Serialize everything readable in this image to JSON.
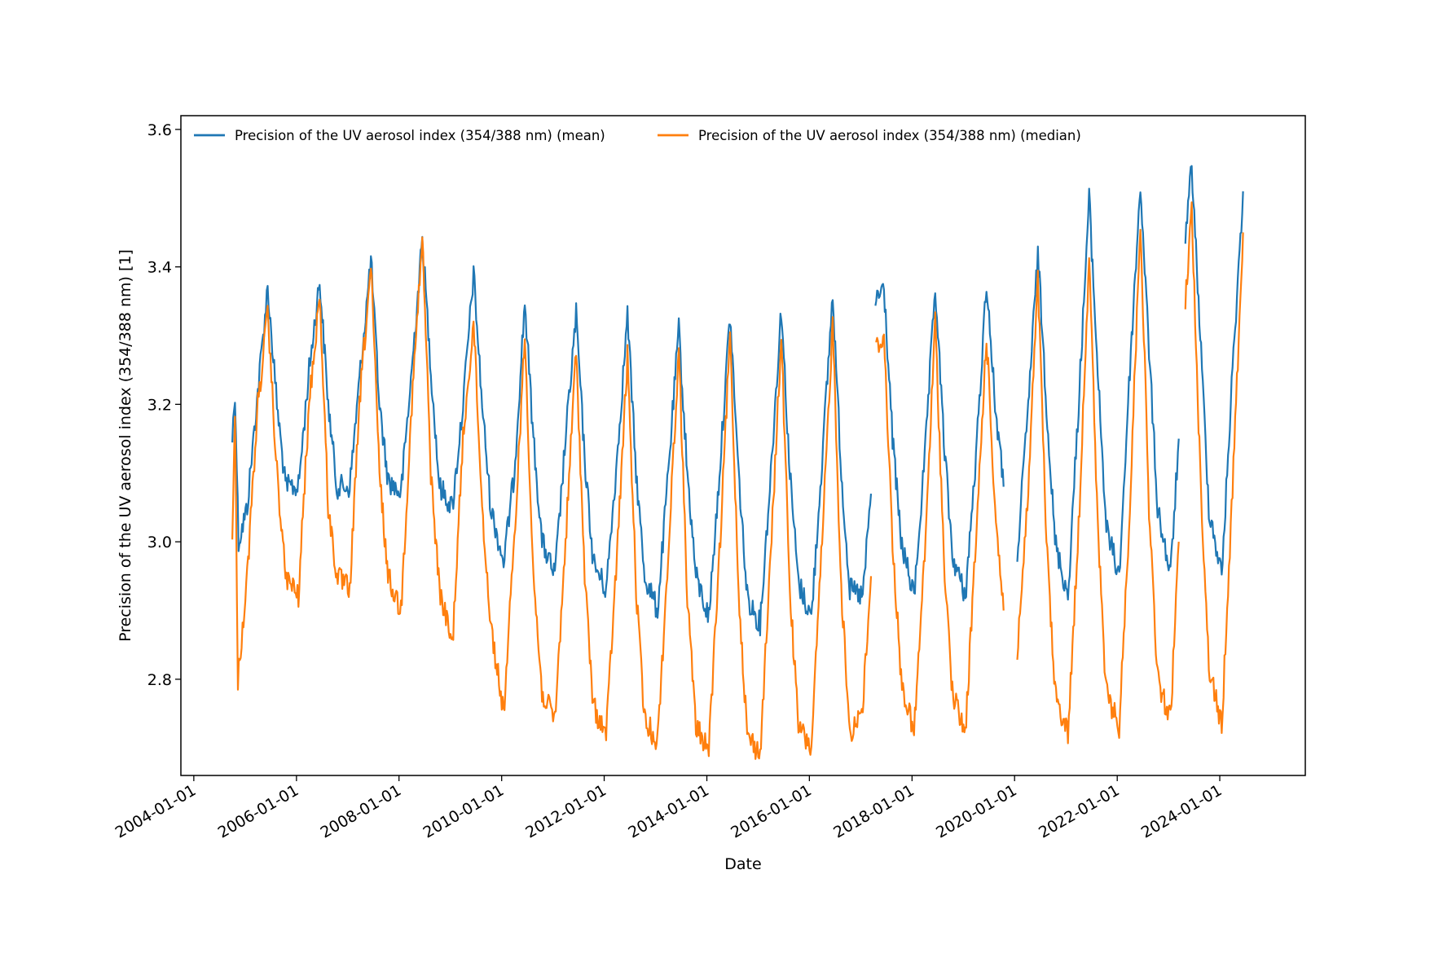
{
  "chart_data": {
    "type": "line",
    "xlabel": "Date",
    "ylabel": "Precision of the UV aerosol index (354/388 nm) [1]",
    "xlim": [
      "2003-10-01",
      "2025-09-01"
    ],
    "ylim": [
      2.66,
      3.62
    ],
    "x_ticks": [
      "2004-01-01",
      "2006-01-01",
      "2008-01-01",
      "2010-01-01",
      "2012-01-01",
      "2014-01-01",
      "2016-01-01",
      "2018-01-01",
      "2020-01-01",
      "2022-01-01",
      "2024-01-01"
    ],
    "y_ticks": [
      "2.8",
      "3.0",
      "3.2",
      "3.4",
      "3.6"
    ],
    "legend_position": "top-left",
    "grid": false,
    "series": [
      {
        "name": "Precision of the UV aerosol index (354/388 nm) (mean)",
        "color": "#1f77b4",
        "x": [
          "2004-10-01",
          "2004-10-20",
          "2004-11-15",
          "2005-01-15",
          "2005-04-01",
          "2005-06-10",
          "2005-08-15",
          "2005-10-15",
          "2006-01-15",
          "2006-04-01",
          "2006-06-15",
          "2006-08-15",
          "2006-10-15",
          "2007-01-15",
          "2007-04-01",
          "2007-06-15",
          "2007-08-15",
          "2007-10-15",
          "2008-01-15",
          "2008-04-01",
          "2008-06-15",
          "2008-08-15",
          "2008-10-15",
          "2009-01-15",
          "2009-04-01",
          "2009-06-15",
          "2009-08-15",
          "2009-10-15",
          "2010-01-15",
          "2010-04-01",
          "2010-06-15",
          "2010-08-15",
          "2010-10-15",
          "2011-01-15",
          "2011-04-01",
          "2011-06-15",
          "2011-08-15",
          "2011-10-15",
          "2012-01-15",
          "2012-04-01",
          "2012-06-15",
          "2012-08-15",
          "2012-10-15",
          "2013-01-15",
          "2013-04-01",
          "2013-06-15",
          "2013-08-15",
          "2013-10-15",
          "2014-01-15",
          "2014-04-01",
          "2014-06-15",
          "2014-08-15",
          "2014-10-15",
          "2015-01-15",
          "2015-04-01",
          "2015-06-15",
          "2015-08-15",
          "2015-10-15",
          "2016-01-15",
          "2016-04-01",
          "2016-06-15",
          "2016-08-15",
          "2016-10-15",
          "2017-01-15",
          "2017-03-15"
        ],
        "y": [
          3.15,
          3.22,
          3.0,
          3.05,
          3.22,
          3.37,
          3.2,
          3.08,
          3.08,
          3.25,
          3.38,
          3.2,
          3.08,
          3.08,
          3.25,
          3.41,
          3.2,
          3.09,
          3.07,
          3.25,
          3.44,
          3.25,
          3.08,
          3.05,
          3.2,
          3.39,
          3.2,
          3.05,
          2.97,
          3.1,
          3.35,
          3.15,
          3.0,
          2.95,
          3.15,
          3.33,
          3.12,
          2.97,
          2.93,
          3.12,
          3.33,
          3.1,
          2.95,
          2.9,
          3.1,
          3.31,
          3.1,
          2.95,
          2.89,
          3.1,
          3.33,
          3.1,
          2.92,
          2.88,
          3.1,
          3.34,
          3.1,
          2.94,
          2.89,
          3.12,
          3.36,
          3.1,
          2.93,
          2.92,
          3.07
        ]
      },
      {
        "name": "Precision of the UV aerosol index (354/388 nm) (mean)",
        "color": "#1f77b4",
        "x": [
          "2017-04-15",
          "2017-06-15",
          "2017-08-15",
          "2017-10-15",
          "2018-01-15",
          "2018-04-01",
          "2018-06-15",
          "2018-08-15",
          "2018-10-15",
          "2019-01-15",
          "2019-04-01",
          "2019-06-15",
          "2019-08-15",
          "2019-10-15"
        ],
        "y": [
          3.35,
          3.37,
          3.15,
          3.0,
          2.92,
          3.12,
          3.37,
          3.15,
          2.98,
          2.92,
          3.12,
          3.38,
          3.2,
          3.08
        ]
      },
      {
        "name": "Precision of the UV aerosol index (354/388 nm) (mean)",
        "color": "#1f77b4",
        "x": [
          "2020-01-20",
          "2020-04-01",
          "2020-06-15",
          "2020-08-15",
          "2020-10-15",
          "2021-01-15",
          "2021-04-01",
          "2021-06-15",
          "2021-08-15",
          "2021-10-15",
          "2022-01-15",
          "2022-04-01",
          "2022-06-15",
          "2022-08-15",
          "2022-10-15",
          "2023-01-15",
          "2023-03-15"
        ],
        "y": [
          2.98,
          3.18,
          3.42,
          3.2,
          3.0,
          2.92,
          3.2,
          3.5,
          3.25,
          3.02,
          2.95,
          3.25,
          3.52,
          3.28,
          3.05,
          2.95,
          3.15
        ]
      },
      {
        "name": "Precision of the UV aerosol index (354/388 nm) (mean)",
        "color": "#1f77b4",
        "x": [
          "2023-05-01",
          "2023-06-15",
          "2023-08-15",
          "2023-10-15",
          "2024-01-15",
          "2024-04-01",
          "2024-06-15"
        ],
        "y": [
          3.43,
          3.55,
          3.3,
          3.05,
          2.95,
          3.25,
          3.51
        ]
      },
      {
        "name": "Precision of the UV aerosol index (354/388 nm) (median)",
        "color": "#ff7f0e",
        "x": [
          "2004-10-01",
          "2004-10-20",
          "2004-11-10",
          "2005-01-15",
          "2005-04-01",
          "2005-06-10",
          "2005-08-15",
          "2005-10-15",
          "2006-01-15",
          "2006-04-01",
          "2006-06-15",
          "2006-08-15",
          "2006-10-15",
          "2007-01-15",
          "2007-04-01",
          "2007-06-15",
          "2007-08-15",
          "2007-10-15",
          "2008-01-15",
          "2008-04-01",
          "2008-06-15",
          "2008-08-15",
          "2008-10-15",
          "2009-01-15",
          "2009-04-01",
          "2009-06-15",
          "2009-08-15",
          "2009-10-15",
          "2010-01-15",
          "2010-04-01",
          "2010-06-15",
          "2010-08-15",
          "2010-10-15",
          "2011-01-15",
          "2011-04-01",
          "2011-06-15",
          "2011-08-15",
          "2011-10-15",
          "2012-01-15",
          "2012-04-01",
          "2012-06-15",
          "2012-08-15",
          "2012-10-15",
          "2013-01-15",
          "2013-04-01",
          "2013-06-15",
          "2013-08-15",
          "2013-10-15",
          "2014-01-15",
          "2014-04-01",
          "2014-06-15",
          "2014-08-15",
          "2014-10-15",
          "2015-01-15",
          "2015-04-01",
          "2015-06-15",
          "2015-08-15",
          "2015-10-15",
          "2016-01-15",
          "2016-04-01",
          "2016-06-15",
          "2016-08-15",
          "2016-10-15",
          "2017-01-15",
          "2017-03-15"
        ],
        "y": [
          3.0,
          3.18,
          2.8,
          2.95,
          3.2,
          3.33,
          3.1,
          2.95,
          2.92,
          3.2,
          3.36,
          3.05,
          2.95,
          2.93,
          3.22,
          3.4,
          3.1,
          2.95,
          2.9,
          3.2,
          3.44,
          3.1,
          2.93,
          2.85,
          3.15,
          3.32,
          3.05,
          2.88,
          2.75,
          3.0,
          3.3,
          2.95,
          2.78,
          2.74,
          3.0,
          3.28,
          2.95,
          2.76,
          2.72,
          2.98,
          3.27,
          2.93,
          2.74,
          2.71,
          2.98,
          3.28,
          2.92,
          2.73,
          2.7,
          2.98,
          3.3,
          2.93,
          2.72,
          2.69,
          2.98,
          3.3,
          2.93,
          2.73,
          2.7,
          3.0,
          3.32,
          2.93,
          2.72,
          2.76,
          2.95
        ]
      },
      {
        "name": "Precision of the UV aerosol index (354/388 nm) (median)",
        "color": "#ff7f0e",
        "x": [
          "2017-04-15",
          "2017-06-15",
          "2017-08-15",
          "2017-10-15",
          "2018-01-15",
          "2018-04-01",
          "2018-06-15",
          "2018-08-15",
          "2018-10-15",
          "2019-01-15",
          "2019-04-01",
          "2019-06-15",
          "2019-08-15",
          "2019-10-15"
        ],
        "y": [
          3.28,
          3.3,
          3.0,
          2.8,
          2.72,
          2.98,
          3.32,
          2.98,
          2.78,
          2.72,
          3.0,
          3.3,
          3.05,
          2.9
        ]
      },
      {
        "name": "Precision of the UV aerosol index (354/388 nm) (median)",
        "color": "#ff7f0e",
        "x": [
          "2020-01-20",
          "2020-04-01",
          "2020-06-15",
          "2020-08-15",
          "2020-10-15",
          "2021-01-15",
          "2021-04-01",
          "2021-06-15",
          "2021-08-15",
          "2021-10-15",
          "2022-01-15",
          "2022-04-01",
          "2022-06-15",
          "2022-08-15",
          "2022-10-15",
          "2023-01-15",
          "2023-03-15"
        ],
        "y": [
          2.84,
          3.05,
          3.38,
          3.0,
          2.78,
          2.72,
          3.02,
          3.42,
          3.02,
          2.78,
          2.73,
          3.05,
          3.47,
          3.05,
          2.8,
          2.74,
          3.0
        ]
      },
      {
        "name": "Precision of the UV aerosol index (354/388 nm) (median)",
        "color": "#ff7f0e",
        "x": [
          "2023-05-01",
          "2023-06-15",
          "2023-08-15",
          "2023-10-15",
          "2024-01-15",
          "2024-04-01",
          "2024-06-15"
        ],
        "y": [
          3.35,
          3.48,
          3.1,
          2.82,
          2.73,
          3.08,
          3.45
        ]
      }
    ]
  }
}
